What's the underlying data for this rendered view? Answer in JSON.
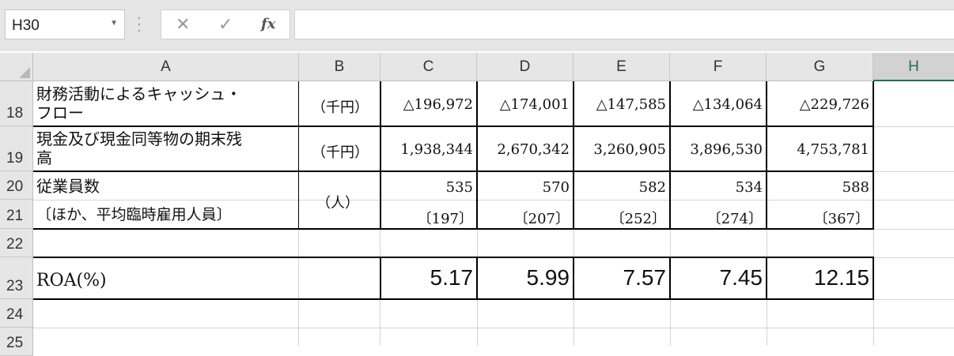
{
  "formula_bar": {
    "name_box": "H30",
    "cancel_icon": "close-icon",
    "enter_icon": "check-icon",
    "fx_label": "fx",
    "formula": ""
  },
  "columns": [
    "A",
    "B",
    "C",
    "D",
    "E",
    "F",
    "G",
    "H"
  ],
  "selected_column": "H",
  "rows": [
    "18",
    "19",
    "20",
    "21",
    "22",
    "23",
    "24",
    "25"
  ],
  "sheet": {
    "r18": {
      "label_line1": "財務活動によるキャッシュ・",
      "label_line2": "フロー",
      "unit": "（千円）",
      "values": [
        "△196,972",
        "△174,001",
        "△147,585",
        "△134,064",
        "△229,726"
      ]
    },
    "r19": {
      "label_line1": "現金及び現金同等物の期末残",
      "label_line2": "高",
      "unit": "（千円）",
      "values": [
        "1,938,344",
        "2,670,342",
        "3,260,905",
        "3,896,530",
        "4,753,781"
      ]
    },
    "r20": {
      "label": "従業員数",
      "unit": "（人）",
      "values": [
        "535",
        "570",
        "582",
        "534",
        "588"
      ]
    },
    "r21": {
      "label": "〔ほか、平均臨時雇用人員〕",
      "values": [
        "〔197〕",
        "〔207〕",
        "〔252〕",
        "〔274〕",
        "〔367〕"
      ]
    },
    "r23": {
      "label": "ROA(%)",
      "values": [
        "5.17",
        "5.99",
        "7.57",
        "7.45",
        "12.15"
      ]
    }
  },
  "colors": {
    "selected_header_accent": "#217346",
    "toolbar_bg": "#e6e6e6"
  }
}
